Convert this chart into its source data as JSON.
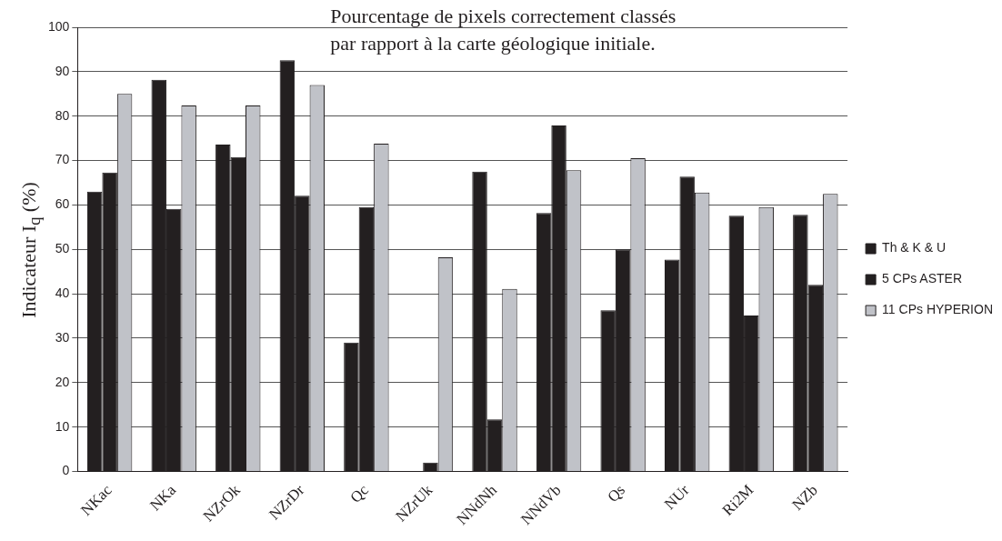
{
  "chart_data": {
    "type": "bar",
    "annotations": [
      "Pourcentage de pixels correctement classés\npar rapport à la carte géologique initiale."
    ],
    "ylabel": "Indicateur I$_{q}$ (%)",
    "categories": [
      "NKac",
      "NKa",
      "NZrOk",
      "NZrDr",
      "Qc",
      "NZrUk",
      "NNdNh",
      "NNdVb",
      "Qs",
      "NUr",
      "Ri2M",
      "NZb"
    ],
    "series": [
      {
        "name": "Th & K & U",
        "color": "#231f20",
        "values": [
          63,
          88.2,
          73.6,
          92.6,
          29,
          0,
          67.5,
          58.2,
          36.3,
          47.7,
          57.6,
          57.8
        ]
      },
      {
        "name": "5 CPs ASTER",
        "color": "#231f20",
        "values": [
          67.3,
          59.1,
          70.8,
          62.1,
          59.5,
          2,
          11.7,
          77.9,
          50,
          66.4,
          35.1,
          42
        ]
      },
      {
        "name": "11 CPs HYPERION",
        "color": "#c0c2c8",
        "values": [
          85,
          82.4,
          82.4,
          87,
          73.8,
          48.2,
          41.1,
          67.8,
          70.5,
          62.8,
          59.5,
          62.5
        ]
      }
    ],
    "ylim": [
      0,
      100
    ],
    "yticks": [
      0,
      10,
      20,
      30,
      40,
      50,
      60,
      70,
      80,
      90,
      100
    ],
    "grid": "y",
    "legend": "right"
  }
}
